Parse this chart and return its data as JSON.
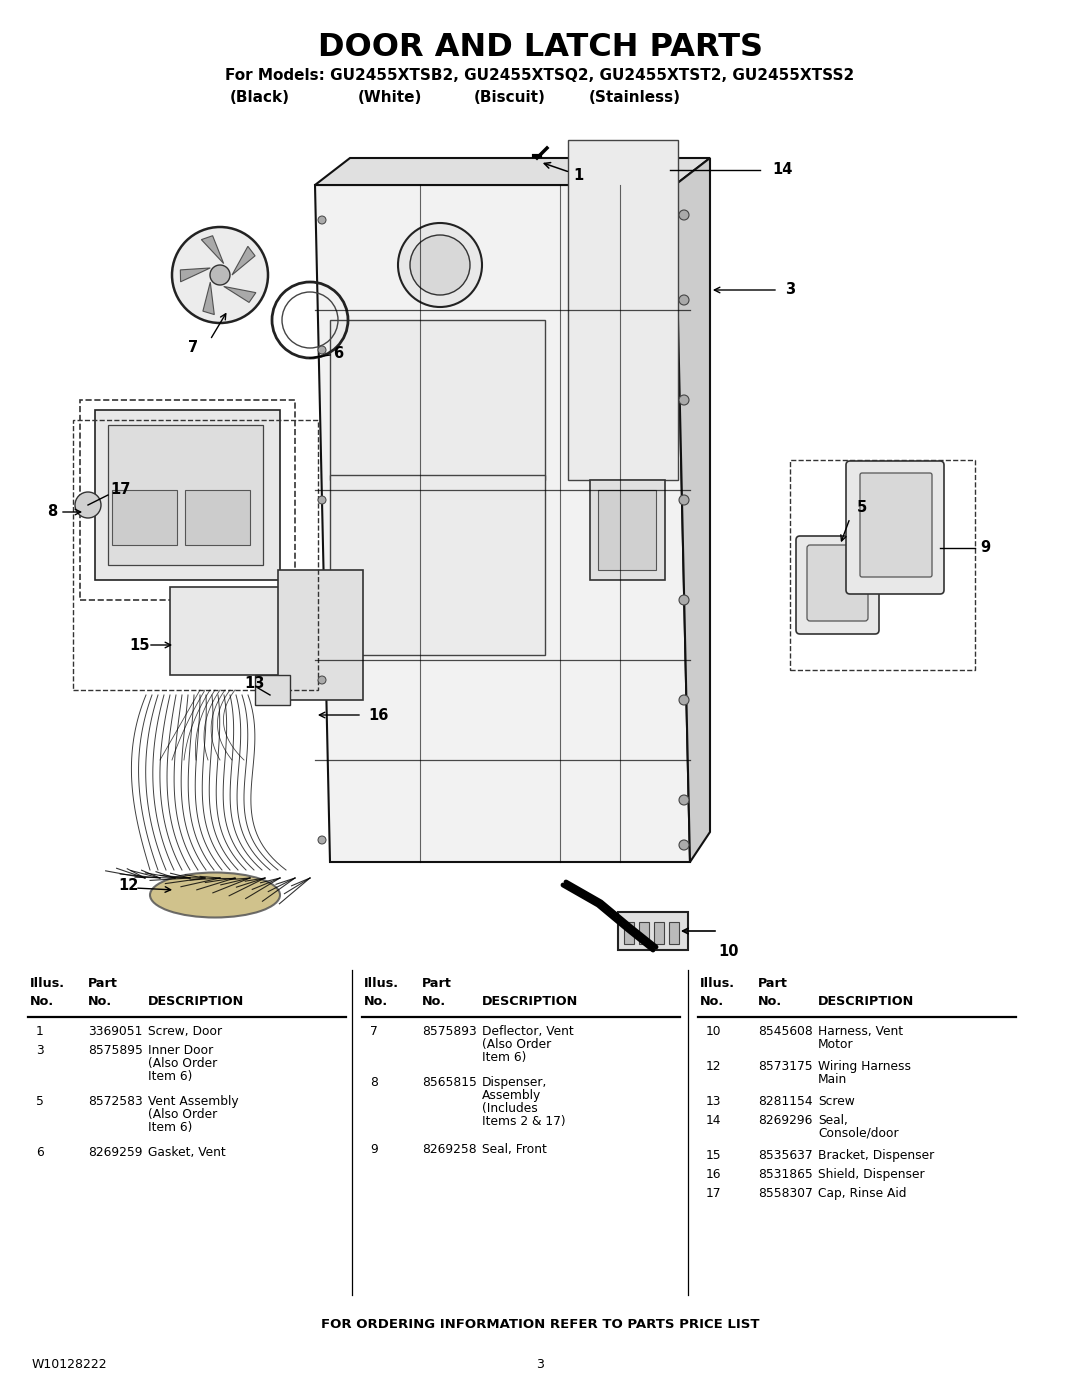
{
  "title": "DOOR AND LATCH PARTS",
  "subtitle_line1": "For Models: GU2455XTSB2, GU2455XTSQ2, GU2455XTST2, GU2455XTSS2",
  "subtitle_line2_parts": [
    "(Black)",
    "(White)",
    "(Biscuit)",
    "(Stainless)"
  ],
  "footer_text": "FOR ORDERING INFORMATION REFER TO PARTS PRICE LIST",
  "doc_number": "W10128222",
  "page_number": "3",
  "bg_color": "#ffffff",
  "text_color": "#000000",
  "table_col1": [
    [
      "1",
      "3369051",
      "Screw, Door"
    ],
    [
      "3",
      "8575895",
      "Inner Door\n(Also Order\nItem 6)"
    ],
    [
      "5",
      "8572583",
      "Vent Assembly\n(Also Order\nItem 6)"
    ],
    [
      "6",
      "8269259",
      "Gasket, Vent"
    ]
  ],
  "table_col2": [
    [
      "7",
      "8575893",
      "Deflector, Vent\n(Also Order\nItem 6)"
    ],
    [
      "8",
      "8565815",
      "Dispenser,\nAssembly\n(Includes\nItems 2 & 17)"
    ],
    [
      "9",
      "8269258",
      "Seal, Front"
    ]
  ],
  "table_col3": [
    [
      "10",
      "8545608",
      "Harness, Vent\nMotor"
    ],
    [
      "12",
      "8573175",
      "Wiring Harness\nMain"
    ],
    [
      "13",
      "8281154",
      "Screw"
    ],
    [
      "14",
      "8269296",
      "Seal,\nConsole/door"
    ],
    [
      "15",
      "8535637",
      "Bracket, Dispenser"
    ],
    [
      "16",
      "8531865",
      "Shield, Dispenser"
    ],
    [
      "17",
      "8558307",
      "Cap, Rinse Aid"
    ]
  ]
}
